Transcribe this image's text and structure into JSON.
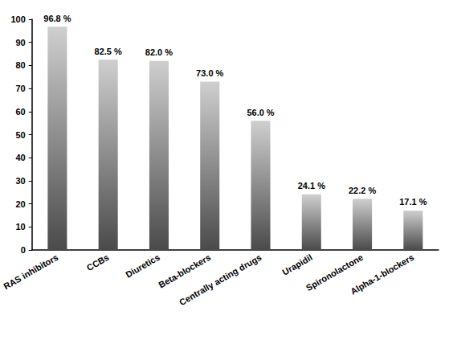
{
  "chart_data": {
    "type": "bar",
    "categories": [
      "RAS inhibitors",
      "CCBs",
      "Diuretics",
      "Beta-blockers",
      "Centrally acting drugs",
      "Urapidil",
      "Spironolactone",
      "Alpha-1-blockers"
    ],
    "values": [
      96.8,
      82.5,
      82.0,
      73.0,
      56.0,
      24.1,
      22.2,
      17.1
    ],
    "value_labels": [
      "96.8 %",
      "82.5 %",
      "82.0 %",
      "73.0 %",
      "56.0 %",
      "24.1 %",
      "22.2 %",
      "17.1 %"
    ],
    "color": "#4a4a4a",
    "ylim": [
      0,
      100
    ],
    "yticks": [
      0,
      10,
      20,
      30,
      40,
      50,
      60,
      70,
      80,
      90,
      100
    ],
    "grid": false,
    "data_labels": true
  }
}
